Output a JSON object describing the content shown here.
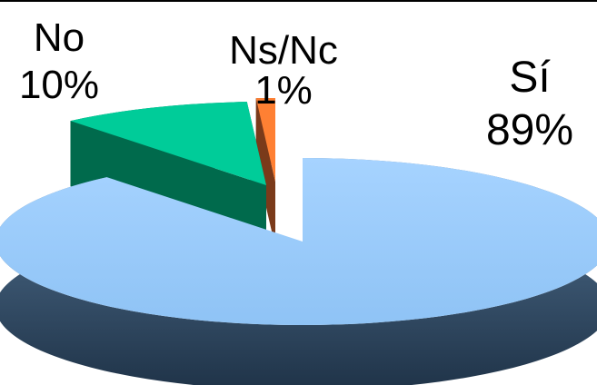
{
  "chart_data": {
    "type": "pie",
    "style": "3d-exploded",
    "title": "",
    "categories": [
      "Sí",
      "No",
      "Ns/Nc"
    ],
    "values": [
      89,
      10,
      1
    ],
    "unit": "%",
    "labels": [
      {
        "name": "Sí",
        "value_text": "89%"
      },
      {
        "name": "No",
        "value_text": "10%"
      },
      {
        "name": "Ns/Nc",
        "value_text": "1%"
      }
    ],
    "colors": {
      "Sí": {
        "top": "#99CCFF",
        "side": "#2F4A63"
      },
      "No": {
        "top": "#00CC99",
        "side": "#006A4C"
      },
      "Ns/Nc": {
        "top": "#FF8033",
        "side": "#7A3A1A"
      }
    },
    "legend": "none"
  }
}
